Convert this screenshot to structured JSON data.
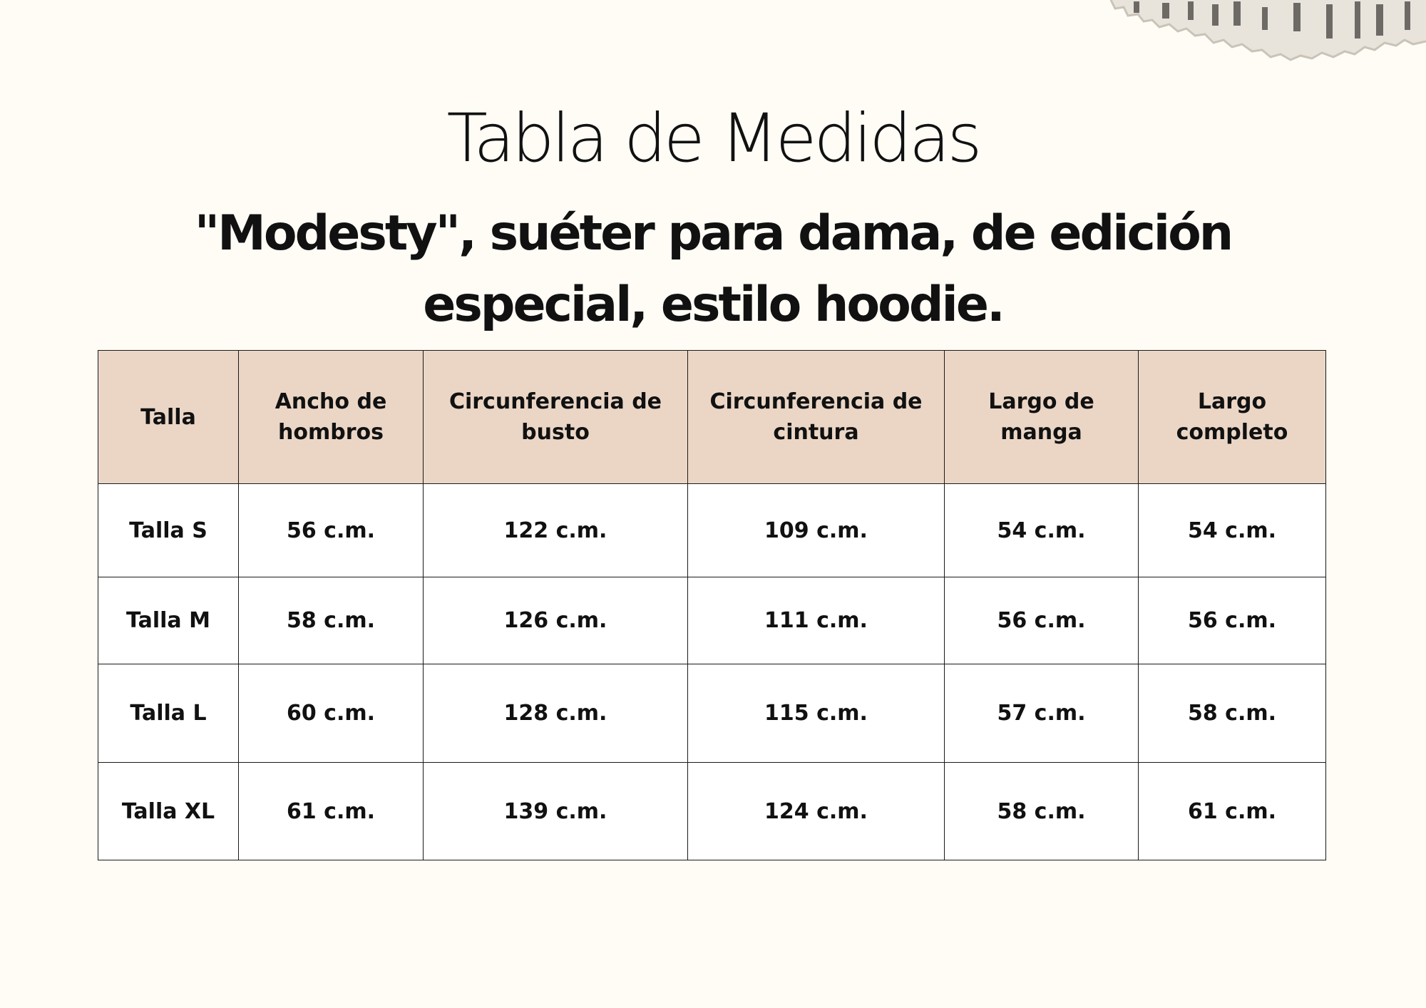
{
  "title": "Tabla de Medidas",
  "subtitle": "\"Modesty\", suéter para dama, de edición especial, estilo hoodie.",
  "table": {
    "header_bg": "#ebd6c6",
    "columns": [
      "Talla",
      "Ancho de hombros",
      "Circunferencia de busto",
      "Circunferencia de cintura",
      "Largo de manga",
      "Largo completo"
    ],
    "rows": [
      [
        "Talla S",
        "56 c.m.",
        "122 c.m.",
        "109 c.m.",
        "54 c.m.",
        "54 c.m."
      ],
      [
        "Talla M",
        "58 c.m.",
        "126 c.m.",
        "111 c.m.",
        "56 c.m.",
        "56 c.m."
      ],
      [
        "Talla L",
        "60 c.m.",
        "128 c.m.",
        "115 c.m.",
        "57 c.m.",
        "58 c.m."
      ],
      [
        "Talla XL",
        "61 c.m.",
        "139 c.m.",
        "124 c.m.",
        "58 c.m.",
        "61 c.m."
      ]
    ]
  }
}
